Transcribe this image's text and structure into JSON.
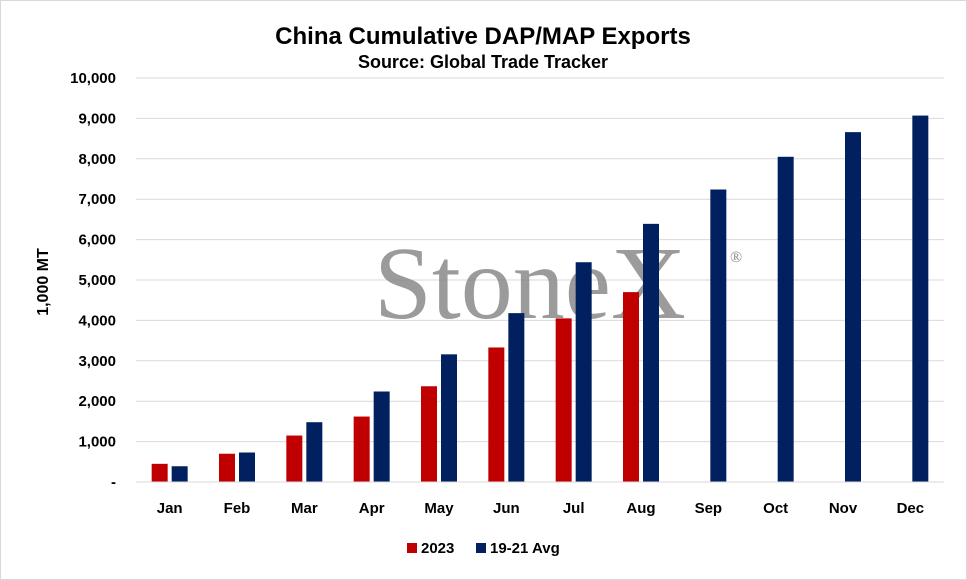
{
  "chart_data": {
    "type": "bar",
    "title": "China Cumulative DAP/MAP Exports",
    "subtitle": "Source: Global Trade Tracker",
    "xlabel": "",
    "ylabel": "1,000 MT",
    "categories": [
      "Jan",
      "Feb",
      "Mar",
      "Apr",
      "May",
      "Jun",
      "Jul",
      "Aug",
      "Sep",
      "Oct",
      "Nov",
      "Dec"
    ],
    "series": [
      {
        "name": "2023",
        "color": "#c00000",
        "values": [
          450,
          700,
          1150,
          1620,
          2370,
          3330,
          4050,
          4700,
          null,
          null,
          null,
          null
        ]
      },
      {
        "name": "19-21 Avg",
        "color": "#002060",
        "values": [
          390,
          730,
          1480,
          2240,
          3160,
          4180,
          5440,
          6390,
          7240,
          8050,
          8660,
          9070
        ]
      }
    ],
    "ylim": [
      0,
      10000
    ],
    "yticks": [
      "-",
      "1,000",
      "2,000",
      "3,000",
      "4,000",
      "5,000",
      "6,000",
      "7,000",
      "8,000",
      "9,000",
      "10,000"
    ],
    "grid": true,
    "legend_position": "bottom"
  },
  "watermark": {
    "text": "StoneX",
    "mark": "®"
  }
}
